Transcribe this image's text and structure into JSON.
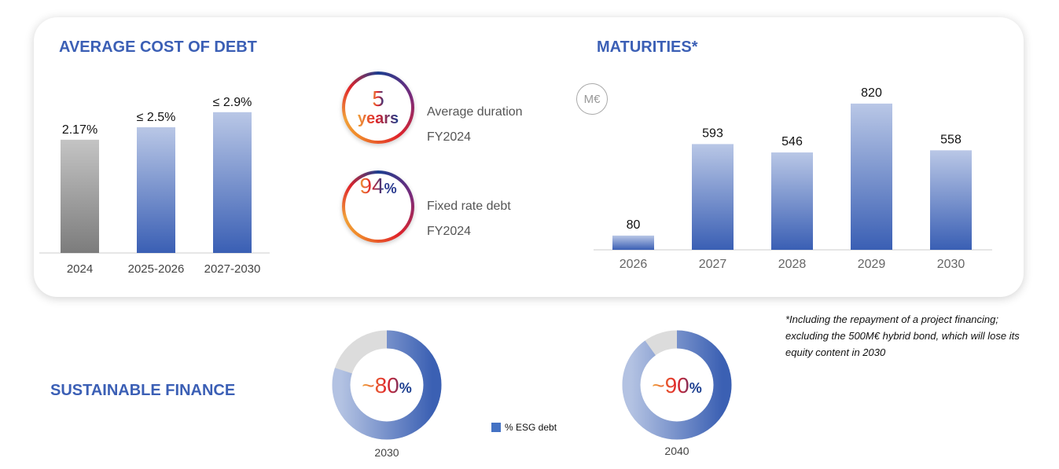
{
  "cost_of_debt": {
    "title": "AVERAGE COST OF DEBT"
  },
  "kpis": [
    {
      "value": "5",
      "unit": "years",
      "label": "Average duration",
      "period": "FY2024"
    },
    {
      "value": "94",
      "unit": "%",
      "label": "Fixed rate debt",
      "period": "FY2024"
    }
  ],
  "maturities": {
    "title": "MATURITIES*",
    "unit_badge": "M€"
  },
  "footnote": "*Including the repayment of a project financing; excluding the 500M€ hybrid bond, which will lose its equity content in 2030",
  "sustainable": {
    "title": "SUSTAINABLE FINANCE",
    "legend": "% ESG debt"
  },
  "chart_data": [
    {
      "type": "bar",
      "title": "AVERAGE COST OF DEBT",
      "categories": [
        "2024",
        "2025-2026",
        "2027-2030"
      ],
      "values": [
        2.17,
        2.5,
        2.9
      ],
      "data_labels": [
        "2.17%",
        "≤ 2.5%",
        "≤ 2.9%"
      ],
      "colors": [
        "#9a9a9a",
        "#3f63b5",
        "#3f63b5"
      ],
      "grid": false
    },
    {
      "type": "bar",
      "title": "MATURITIES*",
      "unit": "M€",
      "categories": [
        "2026",
        "2027",
        "2028",
        "2029",
        "2030"
      ],
      "values": [
        80,
        593,
        546,
        820,
        558
      ],
      "grid": false
    },
    {
      "type": "pie",
      "title": "SUSTAINABLE FINANCE",
      "categories": [
        "2030",
        "2040"
      ],
      "series": [
        {
          "name": "% ESG debt",
          "values": [
            80,
            90
          ]
        }
      ],
      "data_labels": [
        "~80",
        "~90"
      ],
      "colors": {
        "esg": "#3f63b5",
        "other": "#dcdcdc"
      }
    }
  ]
}
